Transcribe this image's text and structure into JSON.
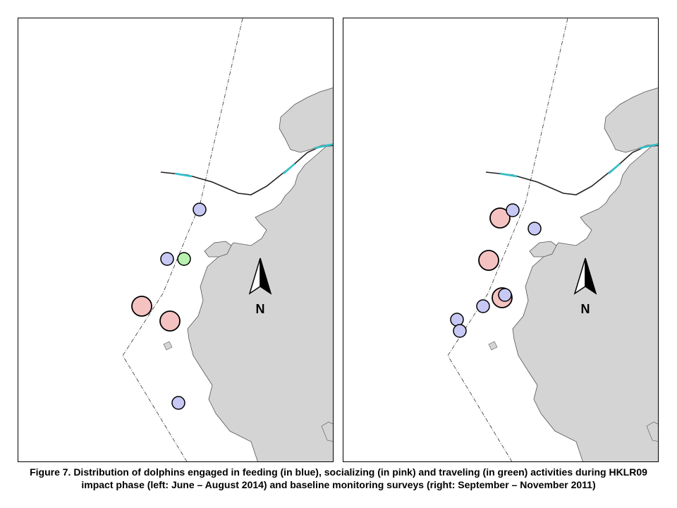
{
  "north_label": "N",
  "caption": {
    "line1": "Figure 7.  Distribution of dolphins engaged in feeding (in blue), socializing (in pink) and traveling (in green) activities during HKLR09",
    "line2": "impact phase (left: June – August 2014) and baseline monitoring surveys (right: September – November 2011)"
  },
  "colors": {
    "land": "#d4d4d4",
    "feeding": "#c8c8f5",
    "socializing": "#f5c2c2",
    "traveling": "#b8f0b0",
    "bridge": "#36c0c8"
  },
  "legend_mapping": {
    "feeding": "blue",
    "socializing": "pink",
    "traveling": "green"
  },
  "maps": [
    {
      "panel": "left",
      "period": "June – August 2014",
      "phase": "impact phase",
      "sightings": [
        {
          "activity": "feeding",
          "count": 1
        },
        {
          "activity": "feeding",
          "count": 1
        },
        {
          "activity": "traveling",
          "count": 1
        },
        {
          "activity": "socializing",
          "count": 1
        },
        {
          "activity": "socializing",
          "count": 1
        },
        {
          "activity": "feeding",
          "count": 1
        }
      ]
    },
    {
      "panel": "right",
      "period": "September – November 2011",
      "phase": "baseline monitoring surveys",
      "sightings": [
        {
          "activity": "socializing",
          "count": 1
        },
        {
          "activity": "feeding",
          "count": 1
        },
        {
          "activity": "feeding",
          "count": 1
        },
        {
          "activity": "socializing",
          "count": 1
        },
        {
          "activity": "socializing",
          "count": 1
        },
        {
          "activity": "feeding",
          "count": 1
        },
        {
          "activity": "feeding",
          "count": 1
        },
        {
          "activity": "feeding",
          "count": 1
        },
        {
          "activity": "feeding",
          "count": 1
        }
      ]
    }
  ]
}
